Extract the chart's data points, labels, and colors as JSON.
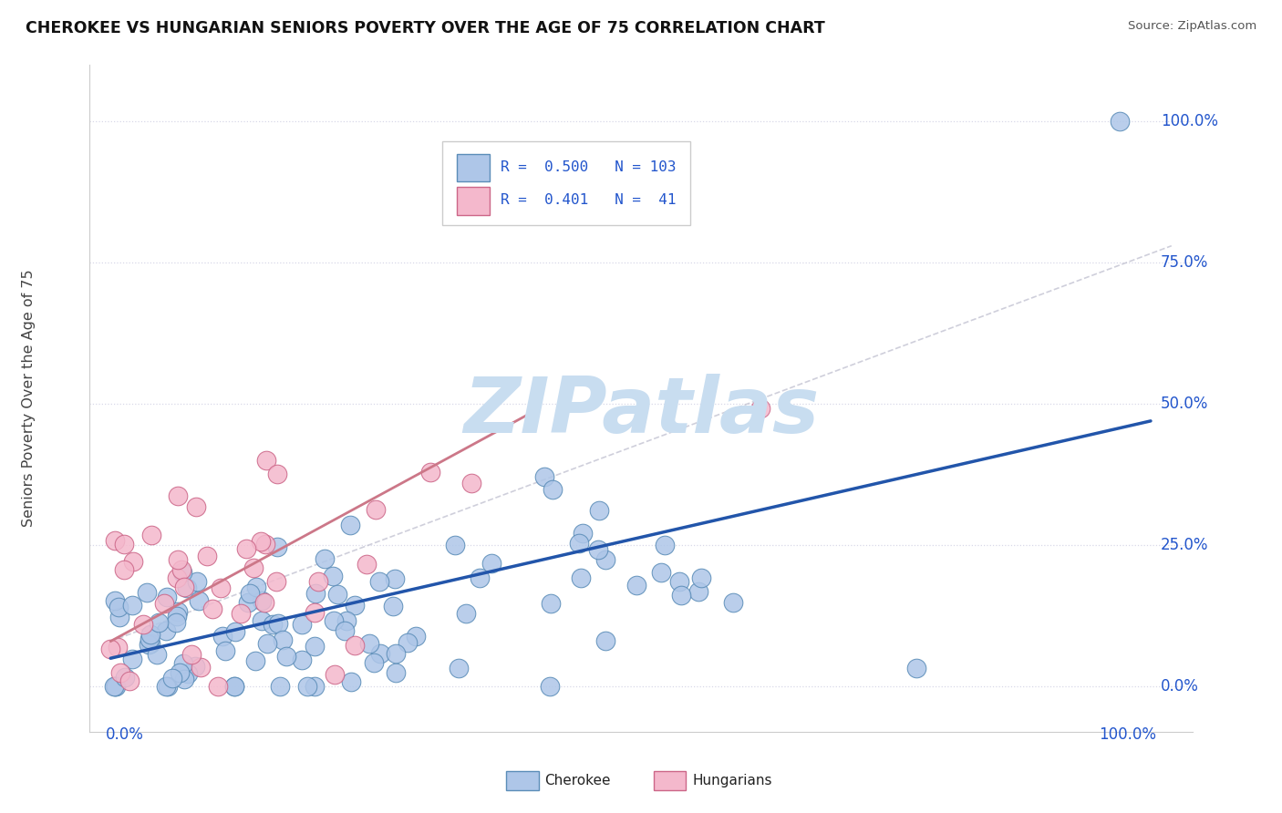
{
  "title": "CHEROKEE VS HUNGARIAN SENIORS POVERTY OVER THE AGE OF 75 CORRELATION CHART",
  "source": "Source: ZipAtlas.com",
  "ylabel": "Seniors Poverty Over the Age of 75",
  "cherokee_color": "#aec6e8",
  "cherokee_edge_color": "#5b8db8",
  "hungarian_color": "#f4b8cc",
  "hungarian_edge_color": "#cc6688",
  "cherokee_line_color": "#2255aa",
  "hungarian_line_color": "#cc7788",
  "r_n_color": "#2255cc",
  "axis_label_color": "#2255cc",
  "watermark_text": "ZIPatlas",
  "watermark_color": "#c8ddf0",
  "cherokee_R": 0.5,
  "hungarian_R": 0.401,
  "cherokee_N": 103,
  "hungarian_N": 41,
  "grid_color": "#d8d8e8",
  "spine_color": "#cccccc"
}
